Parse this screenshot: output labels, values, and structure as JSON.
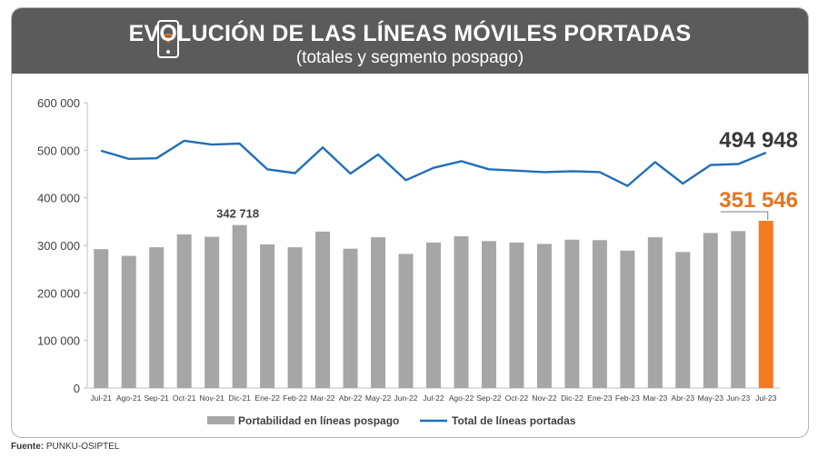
{
  "header": {
    "title": "EVOLUCIÓN DE LAS LÍNEAS MÓVILES PORTADAS",
    "subtitle": "(totales y segmento pospago)",
    "icon": "smartphone-wifi-icon"
  },
  "colors": {
    "bar": "#a6a6a6",
    "bar_highlight": "#f47b20",
    "line": "#1f6fba",
    "banner": "#5b5b5b"
  },
  "source": {
    "label": "Fuente:",
    "value": "PUNKU-OSIPTEL"
  },
  "chart_data": {
    "type": "bar",
    "categories": [
      "Jul-21",
      "Ago-21",
      "Sep-21",
      "Oct-21",
      "Nov-21",
      "Dic-21",
      "Ene-22",
      "Feb-22",
      "Mar-22",
      "Abr-22",
      "May-22",
      "Jun-22",
      "Jul-22",
      "Ago-22",
      "Sep-22",
      "Oct-22",
      "Nov-22",
      "Dic-22",
      "Ene-23",
      "Feb-23",
      "Mar-23",
      "Abr-23",
      "May-23",
      "Jun-23",
      "Jul-23"
    ],
    "series": [
      {
        "name": "Portabilidad en líneas pospago",
        "type": "bar",
        "values": [
          292000,
          278000,
          296000,
          323000,
          318000,
          342718,
          302000,
          296000,
          329000,
          293000,
          317000,
          282000,
          306000,
          319000,
          309000,
          306000,
          303000,
          312000,
          311000,
          289000,
          317000,
          286000,
          326000,
          330000,
          351546
        ]
      },
      {
        "name": "Total de líneas portadas",
        "type": "line",
        "values": [
          499000,
          482000,
          483000,
          520000,
          512000,
          514000,
          460000,
          452000,
          506000,
          451000,
          491000,
          437000,
          463000,
          477000,
          460000,
          457000,
          454000,
          456000,
          454000,
          425000,
          475000,
          430000,
          469000,
          471000,
          494948
        ]
      }
    ],
    "yticks": [
      "0",
      "100 000",
      "200 000",
      "300 000",
      "400 000",
      "500 000",
      "600 000"
    ],
    "ylim": [
      0,
      600000
    ],
    "annotations": [
      {
        "label": "342 718",
        "category": "Dic-21"
      },
      {
        "label": "494 948",
        "category": "Jul-23"
      },
      {
        "label": "351 546",
        "category": "Jul-23"
      }
    ],
    "highlight_category": "Jul-23",
    "legend_position": "bottom",
    "grid": false
  }
}
